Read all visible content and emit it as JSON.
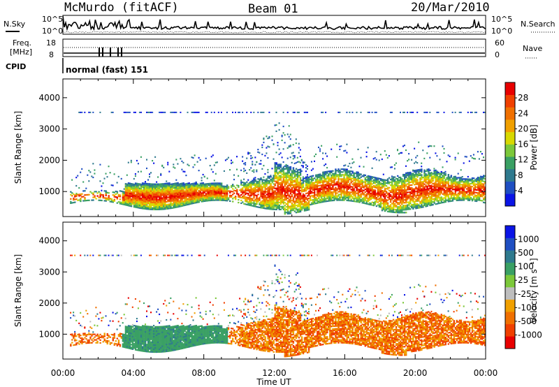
{
  "header": {
    "station": "McMurdo (fitACF)",
    "beam": "Beam 01",
    "date": "20/Mar/2010"
  },
  "strip_labels": {
    "nsky": "N.Sky",
    "nsky_hi": "10^5",
    "nsky_lo": "10^0",
    "nsearch": "N.Search",
    "nsearch_hi": "10^5",
    "nsearch_lo": "10^0",
    "freq_top": "Freq.",
    "freq_unit": "[MHz]",
    "freq_hi": "18",
    "freq_lo": "8",
    "nave": "Nave",
    "nave_hi": "60",
    "nave_lo": "0",
    "cpid": "CPID",
    "mode": "normal (fast) 151"
  },
  "colors": {
    "power": [
      "#0a14e6",
      "#1f4fc2",
      "#2f7a8e",
      "#3aa064",
      "#7cc83a",
      "#d8d800",
      "#f0a000",
      "#f07000",
      "#f04000",
      "#e80000"
    ],
    "velocity": [
      "#e80000",
      "#f04000",
      "#f07000",
      "#f0a000",
      "#bebebe",
      "#7cc83a",
      "#3aa064",
      "#2f7a8e",
      "#1f4fc2",
      "#0a14e6"
    ]
  },
  "chart_data": [
    {
      "type": "heatmap",
      "name": "power",
      "xlabel": "",
      "ylabel": "Slant Range [km]",
      "colorbar_label": "Power [dB]",
      "colorbar_ticks": [
        "4",
        "8",
        "12",
        "16",
        "20",
        "24",
        "28"
      ],
      "yticks": [
        "1000",
        "2000",
        "3000",
        "4000"
      ],
      "ylim": [
        200,
        4600
      ],
      "xlim": [
        0,
        24
      ]
    },
    {
      "type": "heatmap",
      "name": "velocity",
      "xlabel": "Time UT",
      "ylabel": "Slant Range [km]",
      "colorbar_label": "Velocity [m s⁻¹]",
      "colorbar_ticks": [
        "-1000",
        "-500",
        "-100",
        "-25",
        "25",
        "100",
        "500",
        "1000"
      ],
      "xticks": [
        "00:00",
        "04:00",
        "08:00",
        "12:00",
        "16:00",
        "20:00",
        "00:00"
      ],
      "yticks": [
        "1000",
        "2000",
        "3000",
        "4000"
      ],
      "ylim": [
        200,
        4600
      ],
      "xlim": [
        0,
        24
      ]
    }
  ]
}
